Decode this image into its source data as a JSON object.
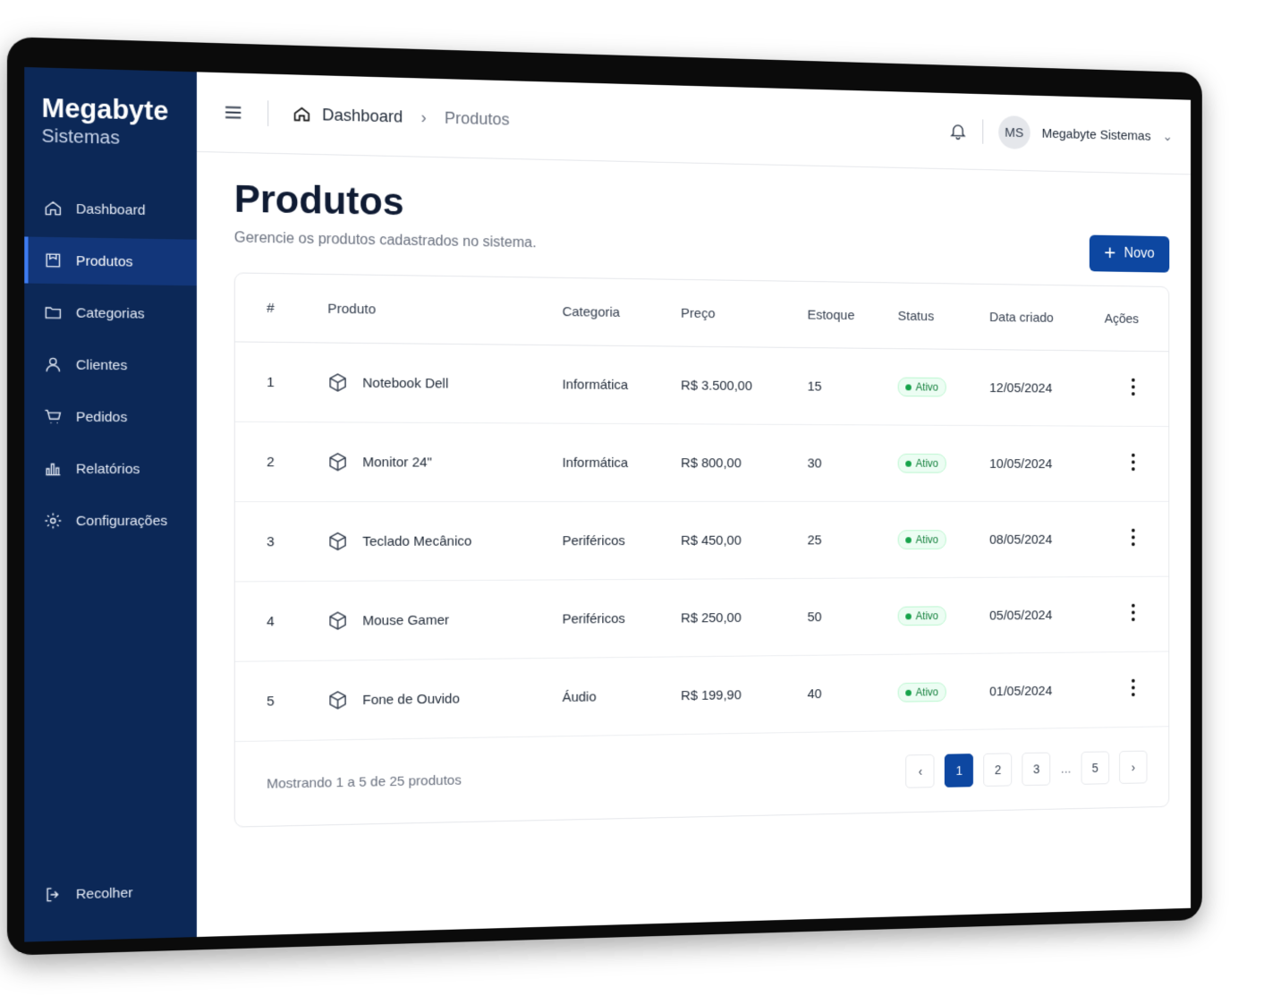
{
  "sidebar": {
    "brand": "Megabyte",
    "brand_sub": "Sistemas",
    "items": [
      "Dashboard",
      "Produtos",
      "Categorias",
      "Clientes",
      "Pedidos",
      "Relatórios",
      "Configurações"
    ],
    "collapse": "Recolher"
  },
  "topbar": {
    "breadcrumb": [
      "Dashboard",
      "Produtos"
    ],
    "avatar": "MS",
    "user": "Megabyte Sistemas"
  },
  "header": {
    "title": "Produtos",
    "subtitle": "Gerencie os produtos cadastrados no sistema.",
    "button": "Novo"
  },
  "table": {
    "columns": [
      "#",
      "Produto",
      "Categoria",
      "Preço",
      "Estoque",
      "Status",
      "Data criado",
      "Ações"
    ],
    "rows": [
      [
        "1",
        "Notebook Dell",
        "Informática",
        "R$ 3.500,00",
        "15",
        "Ativo",
        "12/05/2024"
      ],
      [
        "2",
        "Monitor 24\"",
        "Informática",
        "R$ 800,00",
        "30",
        "Ativo",
        "10/05/2024"
      ],
      [
        "3",
        "Teclado Mecânico",
        "Periféricos",
        "R$ 450,00",
        "25",
        "Ativo",
        "08/05/2024"
      ],
      [
        "4",
        "Mouse Gamer",
        "Periféricos",
        "R$ 250,00",
        "50",
        "Ativo",
        "05/05/2024"
      ],
      [
        "5",
        "Fone de Ouvido",
        "Áudio",
        "R$ 199,90",
        "40",
        "Ativo",
        "01/05/2024"
      ]
    ]
  },
  "footer": {
    "summary": "Mostrando 1 a 5 de 25 produtos",
    "pages": [
      "1",
      "2",
      "3",
      "...",
      "5"
    ]
  }
}
